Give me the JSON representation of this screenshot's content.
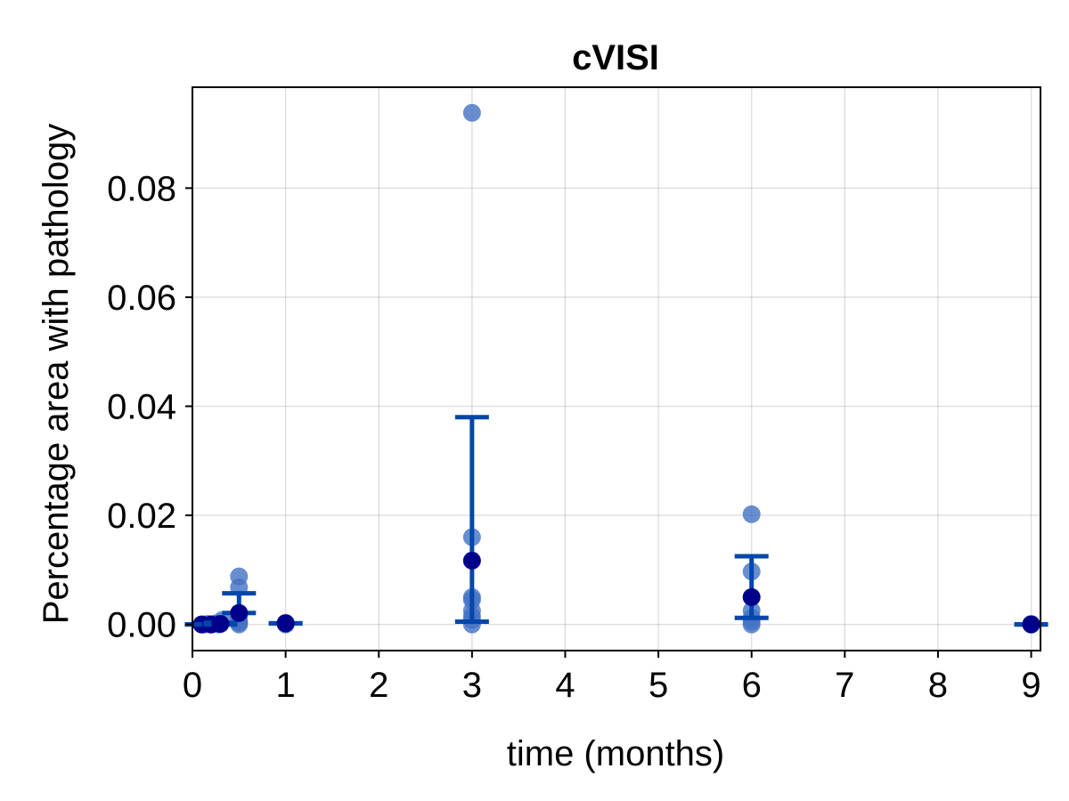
{
  "chart_data": {
    "type": "scatter",
    "title": "cVISI",
    "xlabel": "time (months)",
    "ylabel": "Percentage area with pathology",
    "xlim": [
      0,
      9.1
    ],
    "ylim": [
      -0.0048,
      0.0985
    ],
    "xticks": [
      0,
      1,
      2,
      3,
      4,
      5,
      6,
      7,
      8,
      9
    ],
    "xtick_labels": [
      "0",
      "1",
      "2",
      "3",
      "4",
      "5",
      "6",
      "7",
      "8",
      "9"
    ],
    "yticks": [
      0.0,
      0.02,
      0.04,
      0.06,
      0.08
    ],
    "ytick_labels": [
      "0.00",
      "0.02",
      "0.04",
      "0.06",
      "0.08"
    ],
    "grid": true,
    "legend": "none",
    "colors": {
      "points": "#4472c4",
      "mean": "#00008b",
      "errorbar": "#0047ab"
    },
    "points": [
      {
        "x": 0.1,
        "y": 0.0
      },
      {
        "x": 0.13,
        "y": 0.0
      },
      {
        "x": 0.17,
        "y": 0.0001
      },
      {
        "x": 0.2,
        "y": 0.0
      },
      {
        "x": 0.25,
        "y": 0.0002
      },
      {
        "x": 0.28,
        "y": 0.0
      },
      {
        "x": 0.32,
        "y": 0.0008
      },
      {
        "x": 0.5,
        "y": 0.0088
      },
      {
        "x": 0.5,
        "y": 0.0068
      },
      {
        "x": 0.5,
        "y": 0.0015
      },
      {
        "x": 0.5,
        "y": 0.0005
      },
      {
        "x": 0.5,
        "y": 0.0
      },
      {
        "x": 0.5,
        "y": 0.0003
      },
      {
        "x": 1,
        "y": 0.0003
      },
      {
        "x": 1,
        "y": 0.0
      },
      {
        "x": 1,
        "y": 0.0001
      },
      {
        "x": 3,
        "y": 0.0938
      },
      {
        "x": 3,
        "y": 0.016
      },
      {
        "x": 3,
        "y": 0.005
      },
      {
        "x": 3,
        "y": 0.0045
      },
      {
        "x": 3,
        "y": 0.0025
      },
      {
        "x": 3,
        "y": 0.0015
      },
      {
        "x": 3,
        "y": 0.0008
      },
      {
        "x": 3,
        "y": 0.0
      },
      {
        "x": 6,
        "y": 0.0202
      },
      {
        "x": 6,
        "y": 0.0097
      },
      {
        "x": 6,
        "y": 0.0025
      },
      {
        "x": 6,
        "y": 0.0012
      },
      {
        "x": 6,
        "y": 0.0005
      },
      {
        "x": 6,
        "y": 0.0
      },
      {
        "x": 9,
        "y": 0.0
      },
      {
        "x": 9,
        "y": 0.0001
      }
    ],
    "summary": [
      {
        "x": 0.1,
        "mean": 0.0,
        "low": 0.0,
        "high": 0.0
      },
      {
        "x": 0.2,
        "mean": 0.0,
        "low": 0.0,
        "high": 0.0
      },
      {
        "x": 0.3,
        "mean": 0.0001,
        "low": 0.0,
        "high": 0.0003
      },
      {
        "x": 0.5,
        "mean": 0.0021,
        "low": 0.0021,
        "high": 0.0057
      },
      {
        "x": 1,
        "mean": 0.0002,
        "low": 0.0002,
        "high": 0.0002
      },
      {
        "x": 3,
        "mean": 0.0117,
        "low": 0.0005,
        "high": 0.038
      },
      {
        "x": 6,
        "mean": 0.005,
        "low": 0.0012,
        "high": 0.0125
      },
      {
        "x": 9,
        "mean": 0.0,
        "low": 0.0,
        "high": 0.0
      }
    ]
  }
}
